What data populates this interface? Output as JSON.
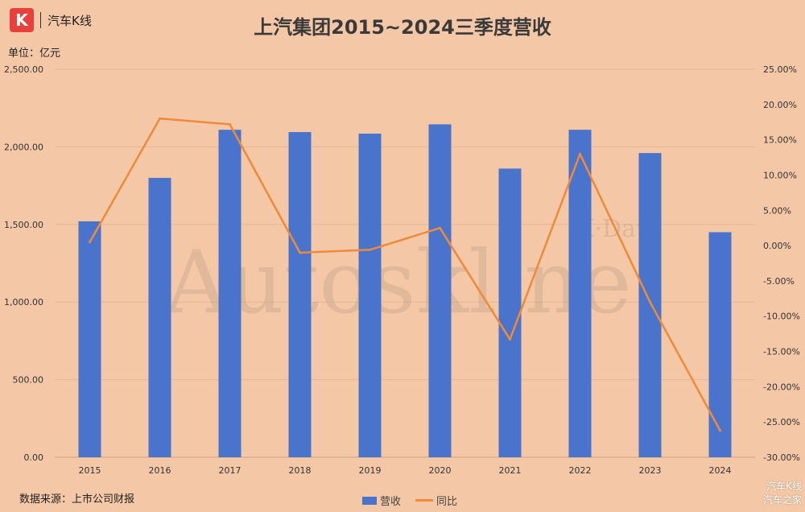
{
  "brand": {
    "logo_letter": "K",
    "name": "汽车K线"
  },
  "title": "上汽集团2015~2024三季度营收",
  "unit_label": "单位：亿元",
  "source_label": "数据来源：上市公司财报",
  "corner_watermark": [
    "汽车K线",
    "汽车之家"
  ],
  "watermark": {
    "main": "Autoskline",
    "sub": "K·Data"
  },
  "legend": {
    "bar": "营收",
    "line": "同比"
  },
  "colors": {
    "bar": "#4a74cc",
    "line": "#ef8a3a",
    "background": "#f4c8a6"
  },
  "chart_data": {
    "type": "bar",
    "categories": [
      "2015",
      "2016",
      "2017",
      "2018",
      "2019",
      "2020",
      "2021",
      "2022",
      "2023",
      "2024"
    ],
    "series": [
      {
        "name": "营收",
        "type": "bar",
        "axis": "left",
        "values": [
          1520,
          1800,
          2110,
          2095,
          2085,
          2145,
          1860,
          2110,
          1960,
          1450
        ]
      },
      {
        "name": "同比",
        "type": "line",
        "axis": "right",
        "values": [
          0.5,
          18.0,
          17.2,
          -1.0,
          -0.6,
          2.5,
          -13.3,
          13.0,
          -8.0,
          -26.2
        ]
      }
    ],
    "left_axis": {
      "min": 0,
      "max": 2500,
      "step": 500,
      "tick_labels": [
        "0.00",
        "500.00",
        "1,000.00",
        "1,500.00",
        "2,000.00",
        "2,500.00"
      ]
    },
    "right_axis": {
      "min": -30,
      "max": 25,
      "step": 5,
      "tick_labels": [
        "-30.00%",
        "-25.00%",
        "-20.00%",
        "-15.00%",
        "-10.00%",
        "-5.00%",
        "0.00%",
        "5.00%",
        "10.00%",
        "15.00%",
        "20.00%",
        "25.00%"
      ]
    },
    "grid": true,
    "legend_position": "bottom"
  }
}
